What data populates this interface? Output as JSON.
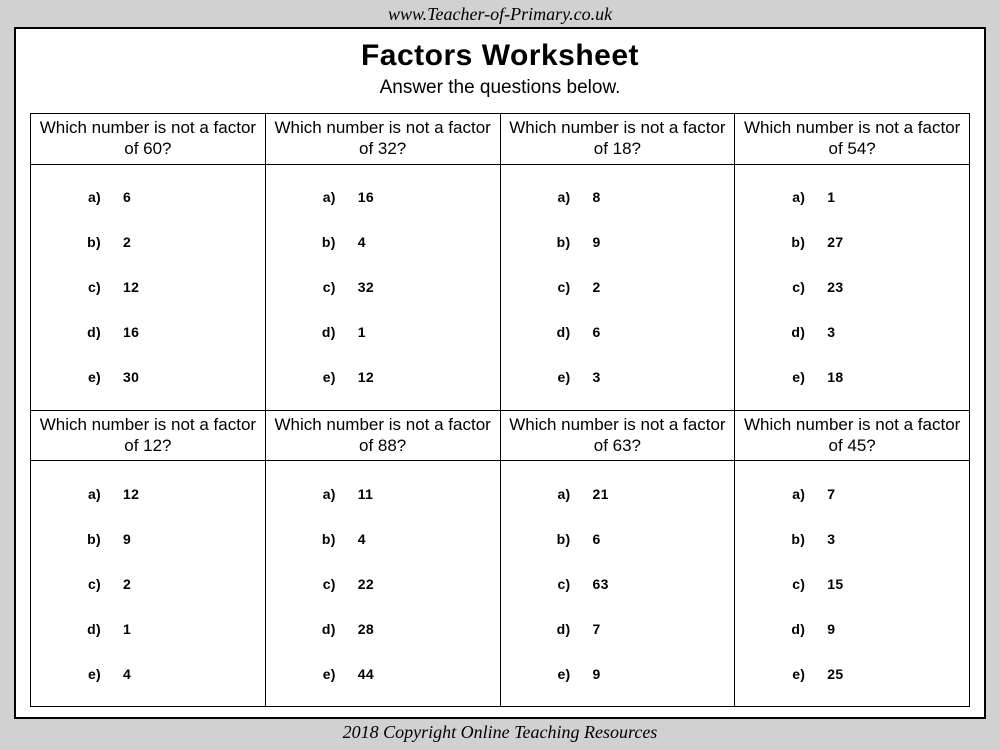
{
  "header_url": "www.Teacher-of-Primary.co.uk",
  "title": "Factors Worksheet",
  "subtitle": "Answer the questions below.",
  "footer": "2018 Copyright Online Teaching Resources",
  "option_letters": [
    "a)",
    "b)",
    "c)",
    "d)",
    "e)"
  ],
  "colors": {
    "page_bg": "#ffffff",
    "outer_bg": "#d1d1d1",
    "border": "#000000",
    "text": "#000000"
  },
  "table": {
    "rows": 2,
    "cols": 4,
    "question_fontsize": 17,
    "option_fontsize": 14,
    "title_fontsize": 30,
    "subtitle_fontsize": 19
  },
  "questions": [
    {
      "text": "Which number is not a factor of 60?",
      "options": [
        "6",
        "2",
        "12",
        "16",
        "30"
      ]
    },
    {
      "text": "Which number is not a factor of 32?",
      "options": [
        "16",
        "4",
        "32",
        "1",
        "12"
      ]
    },
    {
      "text": "Which number is not a factor of 18?",
      "options": [
        "8",
        "9",
        "2",
        "6",
        "3"
      ]
    },
    {
      "text": "Which number is not a factor of 54?",
      "options": [
        "1",
        "27",
        "23",
        "3",
        "18"
      ]
    },
    {
      "text": "Which number is not a factor of 12?",
      "options": [
        "12",
        "9",
        "2",
        "1",
        "4"
      ]
    },
    {
      "text": "Which number is not a factor of 88?",
      "options": [
        "11",
        "4",
        "22",
        "28",
        "44"
      ]
    },
    {
      "text": "Which number is not a factor of 63?",
      "options": [
        "21",
        "6",
        "63",
        "7",
        "9"
      ]
    },
    {
      "text": "Which number is not a factor of 45?",
      "options": [
        "7",
        "3",
        "15",
        "9",
        "25"
      ]
    }
  ]
}
